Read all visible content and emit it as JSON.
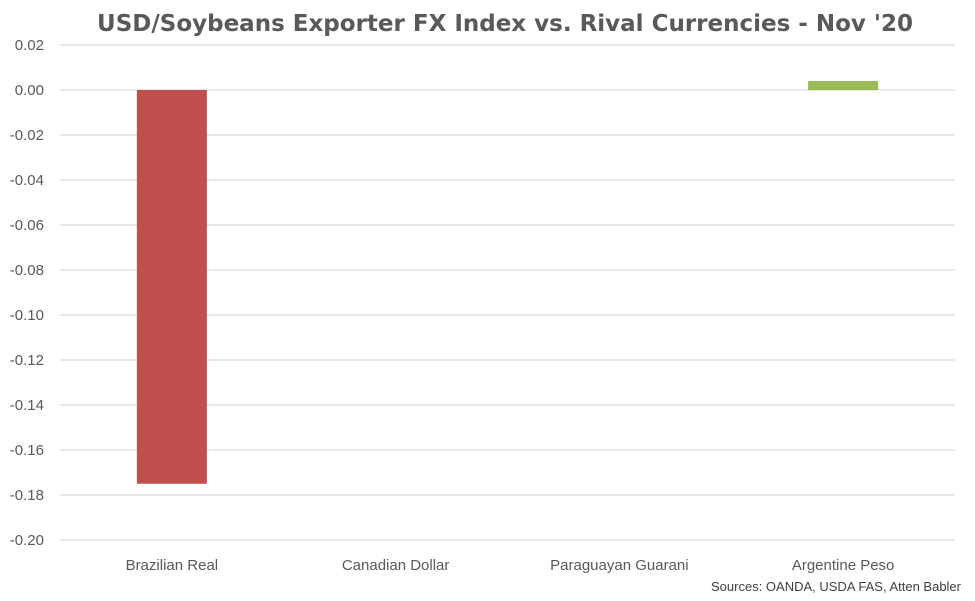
{
  "chart_data": {
    "type": "bar",
    "title": "USD/Soybeans Exporter FX Index vs. Rival Currencies - Nov '20",
    "categories": [
      "Brazilian Real",
      "Canadian Dollar",
      "Paraguayan Guarani",
      "Argentine Peso"
    ],
    "values": [
      -0.175,
      0.0,
      0.0,
      0.004
    ],
    "ylim": [
      -0.2,
      0.02
    ],
    "yticks": [
      "0.02",
      "0.00",
      "-0.02",
      "-0.04",
      "-0.06",
      "-0.08",
      "-0.10",
      "-0.12",
      "-0.14",
      "-0.16",
      "-0.18",
      "-0.20"
    ],
    "ytick_values": [
      0.02,
      0.0,
      -0.02,
      -0.04,
      -0.06,
      -0.08,
      -0.1,
      -0.12,
      -0.14,
      -0.16,
      -0.18,
      -0.2
    ],
    "grid": true,
    "legend": "none",
    "colors": {
      "negative": "#c0504d",
      "positive": "#9bbb59"
    },
    "source": "Sources: OANDA, USDA FAS, Atten Babler"
  }
}
